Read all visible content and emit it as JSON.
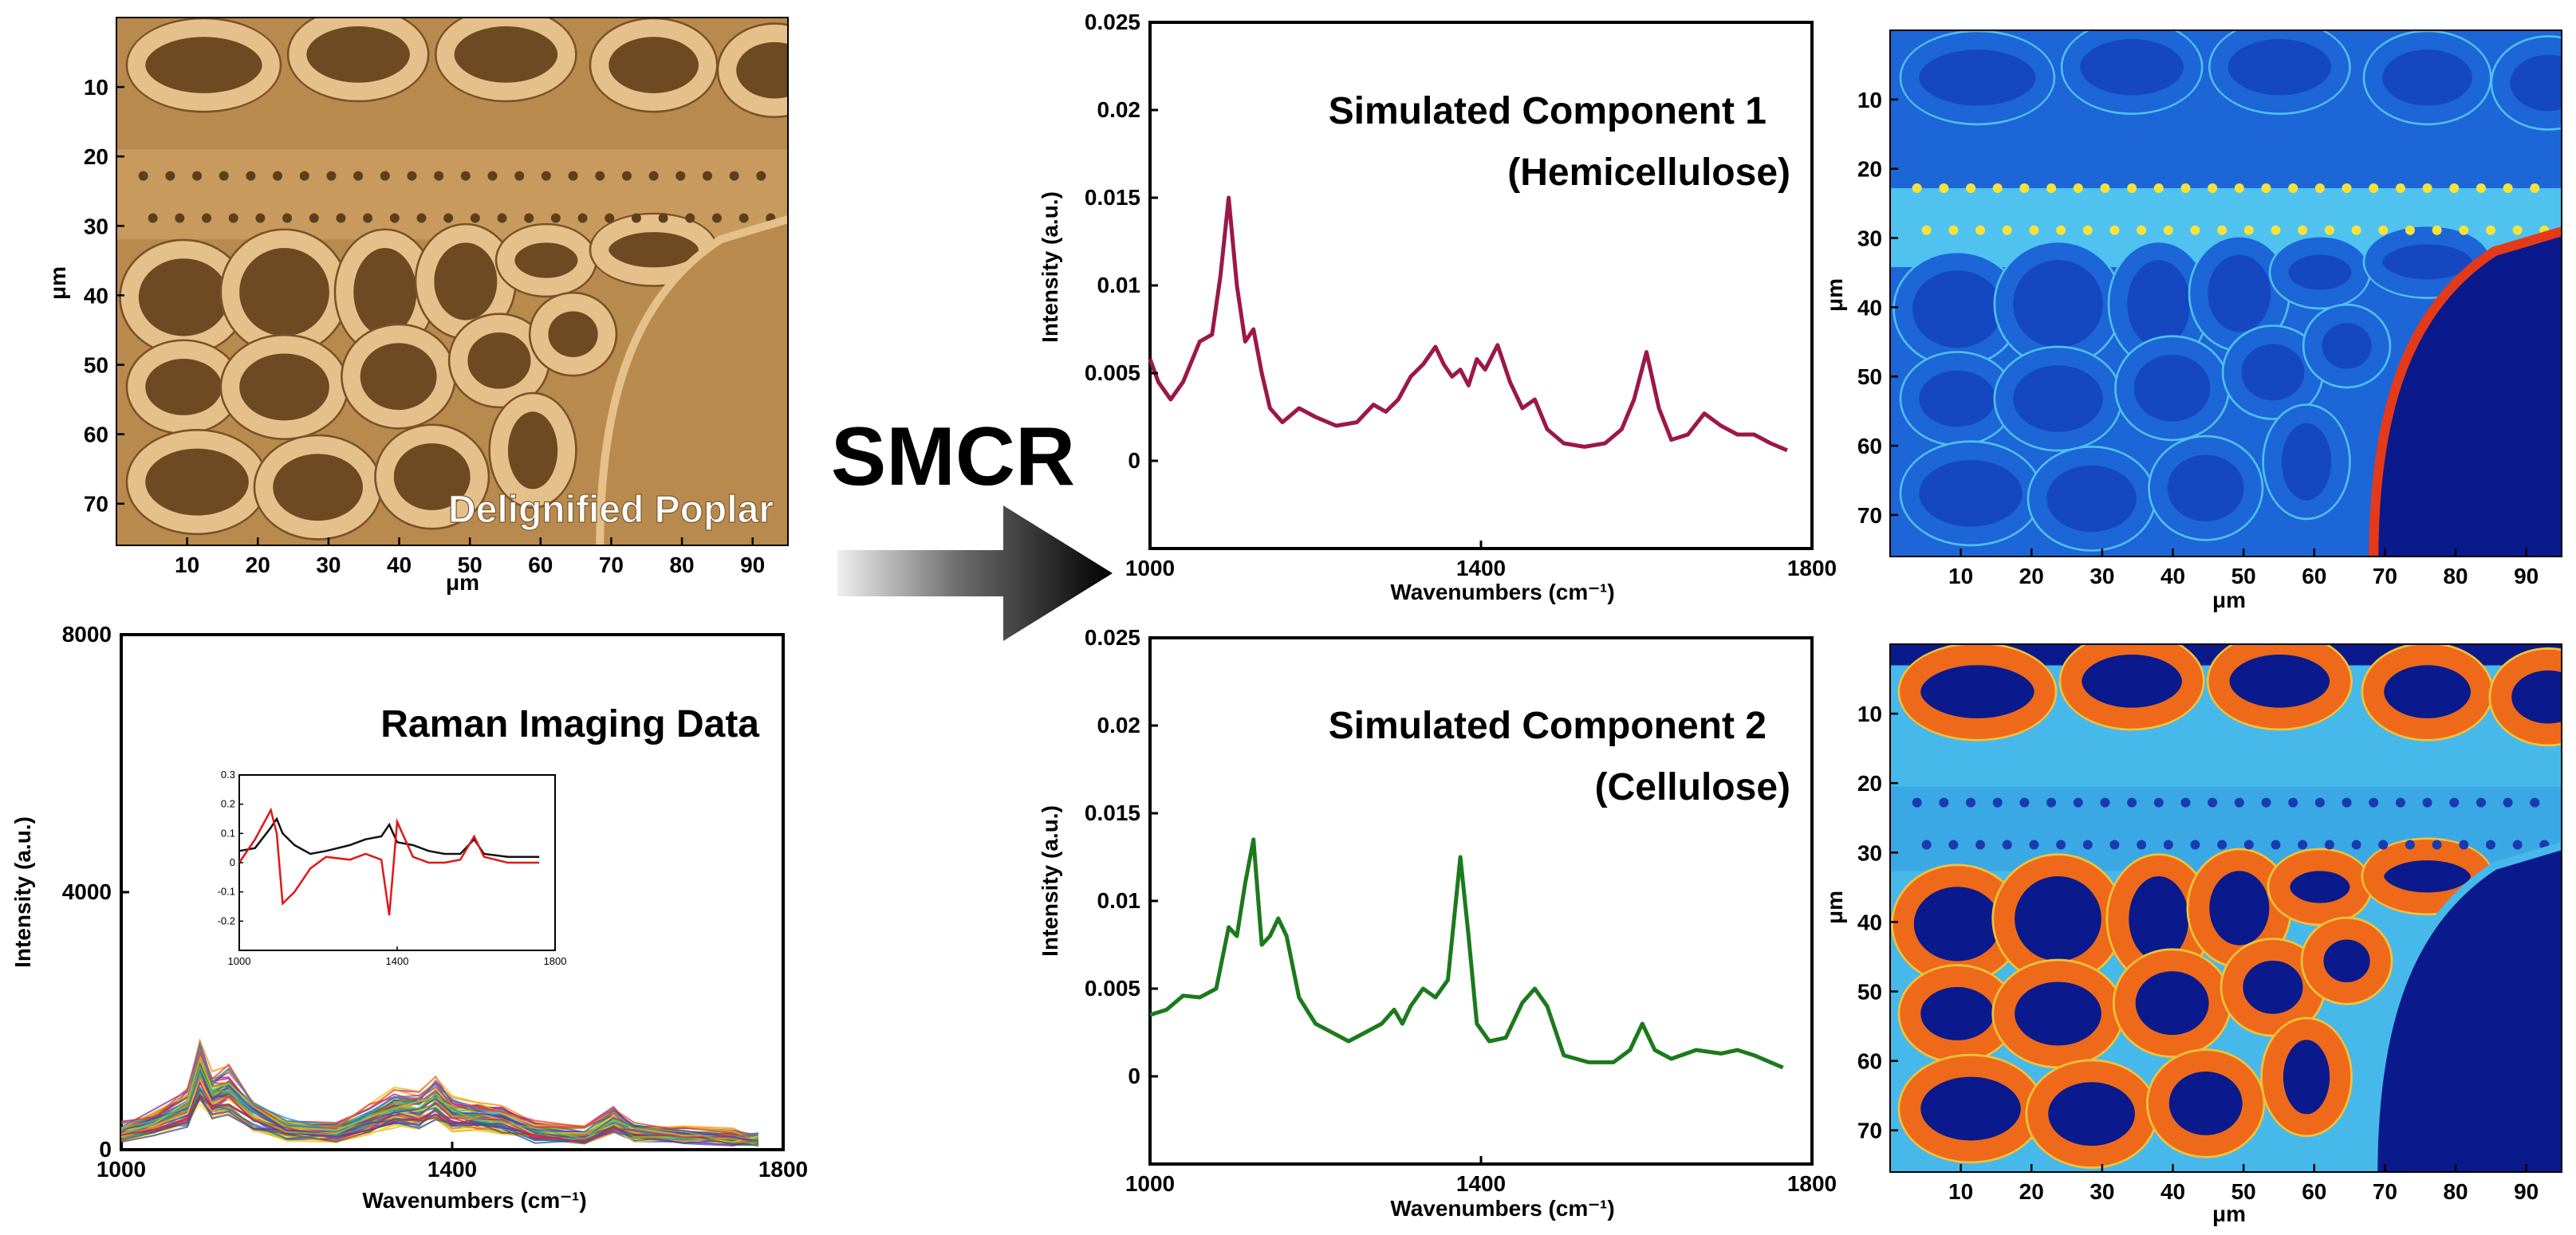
{
  "figure": {
    "method_label": "SMCR",
    "arrow_label": ""
  },
  "chart_data": [
    {
      "id": "micrograph",
      "type": "image",
      "caption": "Delignified Poplar",
      "xlabel": "μm",
      "ylabel": "μm",
      "xticks": [
        "10",
        "20",
        "30",
        "40",
        "50",
        "60",
        "70",
        "80",
        "90"
      ],
      "yticks": [
        "10",
        "20",
        "30",
        "40",
        "50",
        "60",
        "70"
      ],
      "xlim": [
        0,
        95
      ],
      "ylim": [
        0,
        76
      ],
      "colors": {
        "bg": "#b98a4e",
        "wall": "#e6c08a",
        "lumen": "#6e4a22"
      }
    },
    {
      "id": "raman",
      "type": "line",
      "title": "Raman Imaging Data",
      "xlabel": "Wavenumbers (cm⁻¹)",
      "ylabel": "Intensity (a.u.)",
      "xlim": [
        1000,
        1800
      ],
      "ylim": [
        0,
        8000
      ],
      "xticks": [
        "1000",
        "1400",
        "1800"
      ],
      "yticks": [
        "0",
        "4000",
        "8000"
      ],
      "x": [
        1000,
        1040,
        1080,
        1095,
        1110,
        1130,
        1160,
        1200,
        1260,
        1300,
        1330,
        1360,
        1380,
        1400,
        1430,
        1460,
        1500,
        1560,
        1595,
        1620,
        1680,
        1740,
        1770
      ],
      "series": [
        {
          "name": "mean",
          "values": [
            300,
            450,
            700,
            1300,
            900,
            1000,
            600,
            350,
            300,
            500,
            700,
            650,
            850,
            600,
            550,
            500,
            300,
            250,
            500,
            300,
            250,
            200,
            150
          ]
        }
      ],
      "inset": {
        "xlim": [
          1000,
          1800
        ],
        "ylim": [
          -0.3,
          0.3
        ],
        "xticks": [
          "1000",
          "1400",
          "1800"
        ],
        "yticks": [
          "0.3",
          "0.2",
          "0.1",
          "0",
          "-0.1",
          "-0.2"
        ],
        "x": [
          1000,
          1040,
          1080,
          1095,
          1110,
          1140,
          1180,
          1220,
          1280,
          1320,
          1360,
          1380,
          1400,
          1440,
          1480,
          1520,
          1560,
          1595,
          1620,
          1680,
          1760
        ],
        "series": [
          {
            "name": "black",
            "color": "#111111",
            "values": [
              0.04,
              0.05,
              0.12,
              0.15,
              0.1,
              0.06,
              0.03,
              0.04,
              0.06,
              0.08,
              0.09,
              0.13,
              0.07,
              0.06,
              0.04,
              0.03,
              0.03,
              0.08,
              0.03,
              0.02,
              0.02
            ]
          },
          {
            "name": "red",
            "color": "#e01818",
            "values": [
              0.0,
              0.08,
              0.18,
              0.1,
              -0.14,
              -0.1,
              -0.02,
              0.02,
              0.01,
              0.03,
              0.01,
              -0.18,
              0.14,
              0.02,
              0.0,
              0.0,
              0.01,
              0.09,
              0.02,
              0.0,
              0.0
            ]
          }
        ]
      }
    },
    {
      "id": "component1",
      "type": "line",
      "title": "Simulated Component 1",
      "subtitle": "(Hemicellulose)",
      "xlabel": "Wavenumbers (cm⁻¹)",
      "ylabel": "Intensity (a.u.)",
      "xlim": [
        1000,
        1800
      ],
      "ylim": [
        -0.005,
        0.025
      ],
      "xticks": [
        "1000",
        "1400",
        "1800"
      ],
      "yticks": [
        "0",
        "0.005",
        "0.01",
        "0.015",
        "0.02",
        "0.025"
      ],
      "color": "#9b1848",
      "x": [
        1000,
        1010,
        1025,
        1040,
        1060,
        1075,
        1085,
        1095,
        1105,
        1115,
        1125,
        1135,
        1145,
        1160,
        1180,
        1200,
        1225,
        1250,
        1270,
        1285,
        1300,
        1315,
        1330,
        1345,
        1355,
        1365,
        1375,
        1385,
        1395,
        1405,
        1420,
        1435,
        1450,
        1465,
        1480,
        1500,
        1525,
        1550,
        1570,
        1585,
        1600,
        1615,
        1630,
        1650,
        1670,
        1690,
        1710,
        1730,
        1750,
        1770
      ],
      "values": [
        0.0058,
        0.0045,
        0.0035,
        0.0045,
        0.0068,
        0.0072,
        0.0105,
        0.015,
        0.01,
        0.0068,
        0.0075,
        0.005,
        0.003,
        0.0022,
        0.003,
        0.0025,
        0.002,
        0.0022,
        0.0032,
        0.0028,
        0.0035,
        0.0048,
        0.0055,
        0.0065,
        0.0055,
        0.0048,
        0.0052,
        0.0043,
        0.0058,
        0.0052,
        0.0066,
        0.0045,
        0.003,
        0.0035,
        0.0018,
        0.001,
        0.0008,
        0.001,
        0.0018,
        0.0035,
        0.0062,
        0.003,
        0.0012,
        0.0015,
        0.0027,
        0.002,
        0.0015,
        0.0015,
        0.001,
        0.0006
      ]
    },
    {
      "id": "component2",
      "type": "line",
      "title": "Simulated Component 2",
      "subtitle": "(Cellulose)",
      "xlabel": "Wavenumbers (cm⁻¹)",
      "ylabel": "Intensity (a.u.)",
      "xlim": [
        1000,
        1800
      ],
      "ylim": [
        -0.005,
        0.025
      ],
      "xticks": [
        "1000",
        "1400",
        "1800"
      ],
      "yticks": [
        "0",
        "0.005",
        "0.01",
        "0.015",
        "0.02",
        "0.025"
      ],
      "color": "#1c7a1c",
      "x": [
        1000,
        1020,
        1040,
        1060,
        1080,
        1095,
        1105,
        1115,
        1125,
        1135,
        1145,
        1155,
        1165,
        1180,
        1200,
        1220,
        1240,
        1260,
        1280,
        1295,
        1305,
        1315,
        1330,
        1345,
        1360,
        1375,
        1385,
        1395,
        1410,
        1430,
        1450,
        1465,
        1480,
        1500,
        1530,
        1560,
        1580,
        1595,
        1610,
        1630,
        1660,
        1690,
        1710,
        1730,
        1750,
        1765
      ],
      "values": [
        0.0035,
        0.0038,
        0.0046,
        0.0045,
        0.005,
        0.0085,
        0.008,
        0.011,
        0.0135,
        0.0075,
        0.008,
        0.009,
        0.008,
        0.0045,
        0.003,
        0.0025,
        0.002,
        0.0025,
        0.003,
        0.0038,
        0.003,
        0.004,
        0.005,
        0.0045,
        0.0055,
        0.0125,
        0.008,
        0.003,
        0.002,
        0.0022,
        0.0042,
        0.005,
        0.004,
        0.0012,
        0.0008,
        0.0008,
        0.0015,
        0.003,
        0.0015,
        0.001,
        0.0015,
        0.0013,
        0.0015,
        0.0012,
        0.0008,
        0.0005
      ]
    },
    {
      "id": "map1",
      "type": "heatmap",
      "xlabel": "μm",
      "ylabel": "μm",
      "xticks": [
        "10",
        "20",
        "30",
        "40",
        "50",
        "60",
        "70",
        "80",
        "90"
      ],
      "yticks": [
        "10",
        "20",
        "30",
        "40",
        "50",
        "60",
        "70"
      ],
      "xlim": [
        0,
        95
      ],
      "ylim": [
        0,
        76
      ],
      "colors": {
        "bg": "#0a1a8c",
        "base": "#1d66d8",
        "mid": "#4fc2f0",
        "hot": "#f7e23a",
        "max": "#e43a1a"
      }
    },
    {
      "id": "map2",
      "type": "heatmap",
      "xlabel": "μm",
      "ylabel": "μm",
      "xticks": [
        "10",
        "20",
        "30",
        "40",
        "50",
        "60",
        "70",
        "80",
        "90"
      ],
      "yticks": [
        "10",
        "20",
        "30",
        "40",
        "50",
        "60",
        "70"
      ],
      "xlim": [
        0,
        95
      ],
      "ylim": [
        0,
        76
      ],
      "colors": {
        "bg": "#0a1a8c",
        "base": "#46b8ea",
        "mid": "#f0c23a",
        "hot": "#ee6a1a",
        "max": "#d82a12"
      }
    }
  ]
}
